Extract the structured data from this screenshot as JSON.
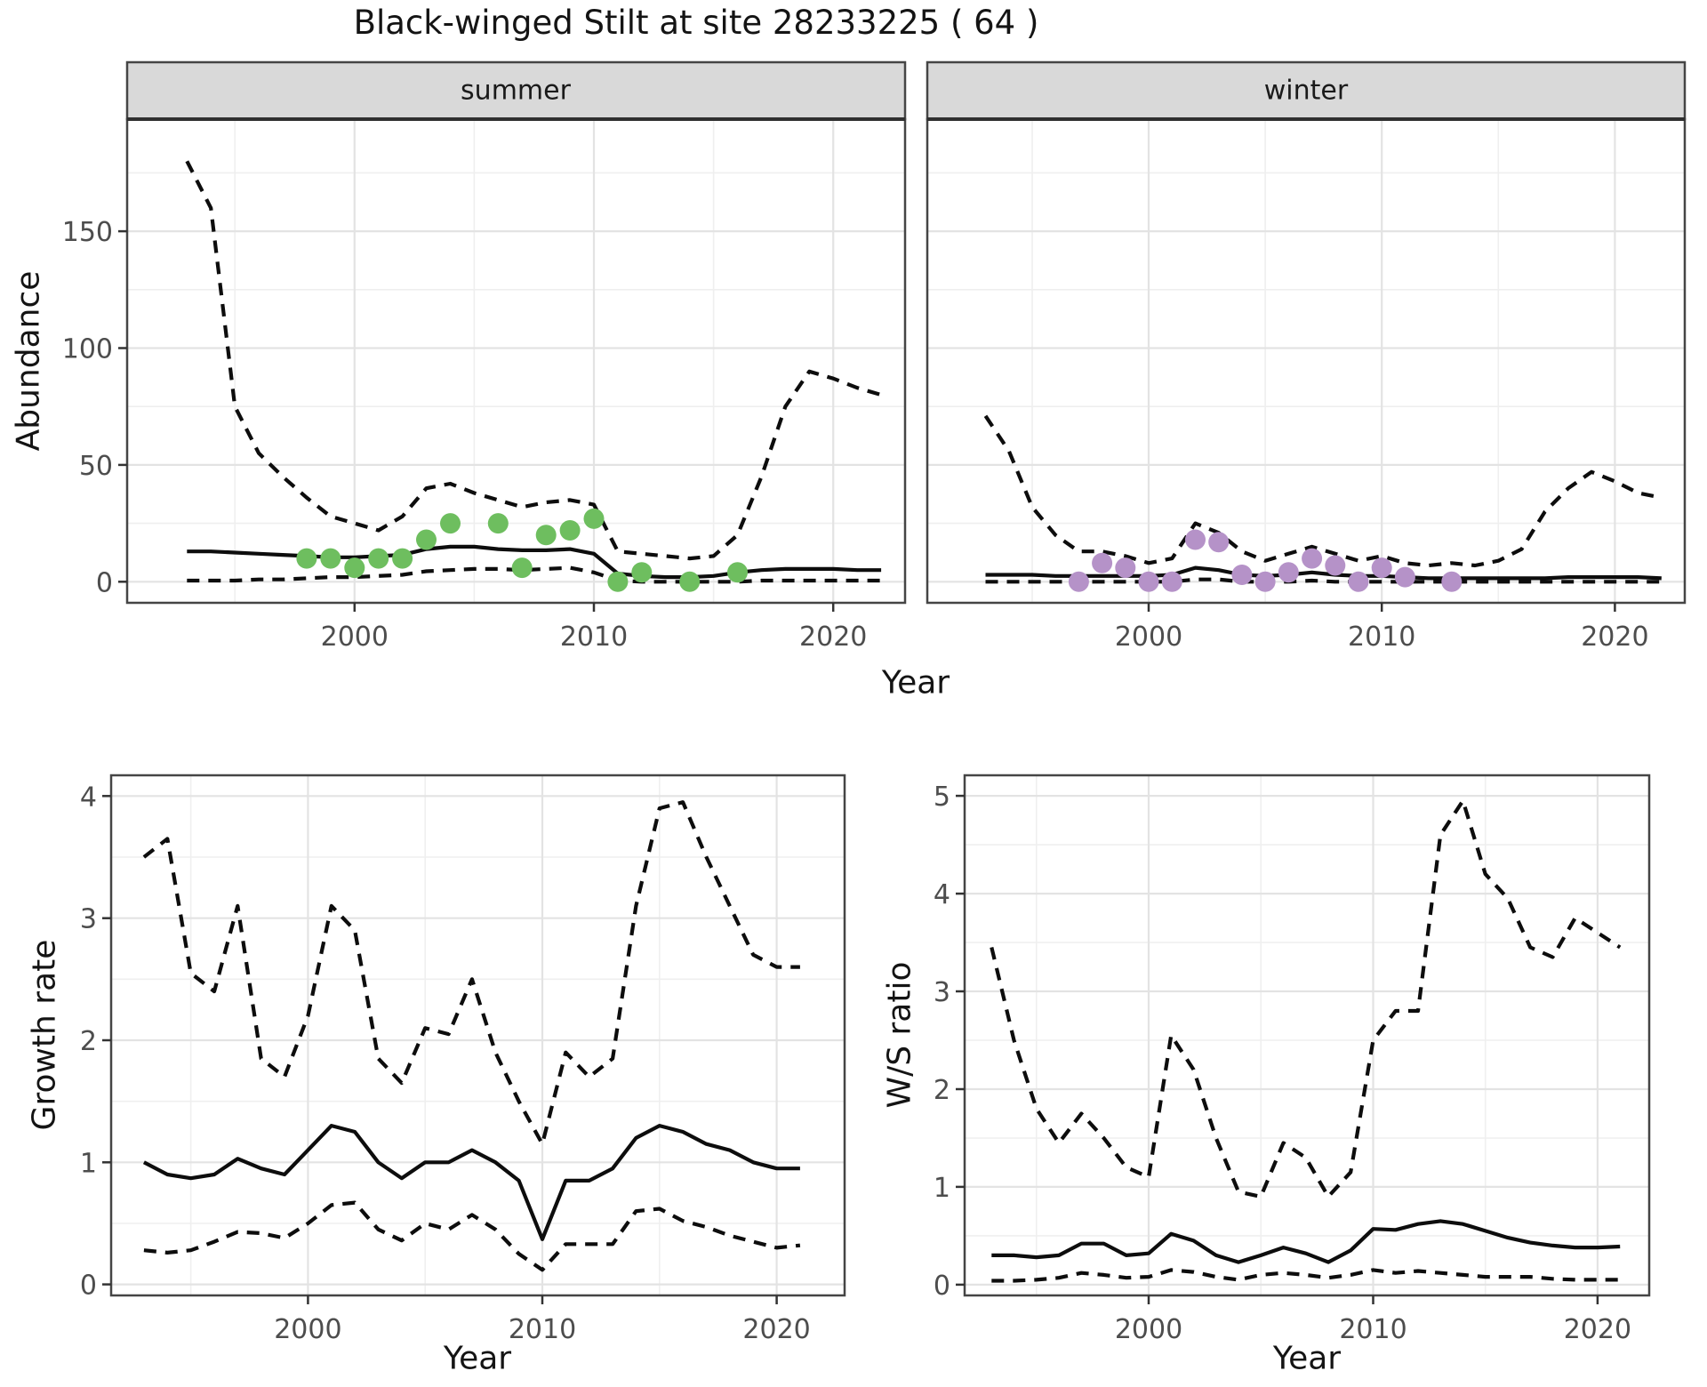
{
  "title": "Black-winged Stilt at site 28233225 ( 64 )",
  "labels": {
    "facet_summer": "summer",
    "facet_winter": "winter",
    "abundance_axis": "Abundance",
    "year_axis_top": "Year",
    "growth_axis": "Growth rate",
    "year_axis_growth": "Year",
    "ws_axis": "W/S ratio",
    "year_axis_ws": "Year"
  },
  "colors": {
    "summer_dot": "#6EBE5F",
    "winter_dot": "#B592C8",
    "line": "#0d0d0d",
    "strip_bg": "#D9D9D9",
    "panel_border": "#454545",
    "grid_major": "#e3e3e3",
    "grid_minor": "#efefef",
    "tick_text": "#4d4d4d",
    "panel_bg": "#ffffff"
  },
  "chart_data": [
    {
      "id": "abundance",
      "type": "line",
      "title": "Black-winged Stilt at site 28233225 ( 64 )",
      "ylabel": "Abundance",
      "xlabel": "Year",
      "legend": "none",
      "grid": "on",
      "xlim": [
        1990.5,
        2023.0
      ],
      "ylim": [
        -9,
        198
      ],
      "xticks": [
        2000,
        2010,
        2020
      ],
      "xminor": [
        1995,
        2005,
        2015
      ],
      "yticks": [
        0,
        50,
        100,
        150
      ],
      "yminor": [
        25,
        75,
        125,
        175
      ],
      "facets": [
        {
          "label": "summer",
          "dot_color": "#6EBE5F",
          "years": [
            1993,
            1994,
            1995,
            1996,
            1997,
            1998,
            1999,
            2000,
            2001,
            2002,
            2003,
            2004,
            2005,
            2006,
            2007,
            2008,
            2009,
            2010,
            2011,
            2012,
            2013,
            2014,
            2015,
            2016,
            2017,
            2018,
            2019,
            2020,
            2021,
            2022
          ],
          "upper": [
            180,
            160,
            75,
            55,
            45,
            36,
            28,
            25,
            22,
            28,
            40,
            42,
            38,
            35,
            32,
            34,
            35,
            33,
            13,
            12,
            11,
            10,
            11,
            20,
            45,
            75,
            90,
            87,
            83,
            80
          ],
          "mean": [
            13,
            13,
            12.5,
            12,
            11.5,
            11,
            10.5,
            10.5,
            11,
            11.5,
            14,
            15,
            15,
            14,
            13.5,
            13.5,
            14,
            12,
            3.5,
            2.5,
            2,
            2,
            2.5,
            4,
            5,
            5.5,
            5.5,
            5.5,
            5,
            5
          ],
          "lower": [
            0.5,
            0.5,
            0.5,
            1,
            1,
            1.5,
            2,
            2,
            2.5,
            3,
            4.5,
            5,
            5.5,
            5.5,
            5,
            5.5,
            6,
            4,
            0.5,
            0,
            0,
            0,
            0,
            0,
            0.5,
            0.5,
            0.5,
            0.5,
            0.5,
            0.5
          ],
          "obs_years": [
            1998,
            1999,
            2000,
            2001,
            2002,
            2003,
            2004,
            2006,
            2007,
            2008,
            2009,
            2010,
            2011,
            2012,
            2014,
            2016
          ],
          "obs_values": [
            10,
            10,
            6,
            10,
            10,
            18,
            25,
            25,
            6,
            20,
            22,
            27,
            0,
            4,
            0,
            4
          ]
        },
        {
          "label": "winter",
          "dot_color": "#B592C8",
          "years": [
            1993,
            1994,
            1995,
            1996,
            1997,
            1998,
            1999,
            2000,
            2001,
            2002,
            2003,
            2004,
            2005,
            2006,
            2007,
            2008,
            2009,
            2010,
            2011,
            2012,
            2013,
            2014,
            2015,
            2016,
            2017,
            2018,
            2019,
            2020,
            2021,
            2022
          ],
          "upper": [
            71,
            56,
            32,
            20,
            13,
            13,
            11,
            8,
            10,
            25,
            21,
            13,
            9,
            12,
            15,
            12,
            9,
            11,
            8,
            7,
            8,
            7,
            9,
            14,
            30,
            40,
            47,
            43,
            38,
            36
          ],
          "mean": [
            3,
            3,
            3,
            2.5,
            2.5,
            2.5,
            2.5,
            2.5,
            3,
            6,
            5,
            3,
            2.5,
            3,
            4,
            3,
            2.5,
            2.5,
            2,
            1.5,
            1.5,
            1.5,
            1.5,
            1.5,
            1.5,
            2,
            2,
            2,
            2,
            1.5
          ],
          "lower": [
            0,
            0,
            0,
            0,
            0,
            0,
            0,
            0,
            0,
            1,
            1,
            0,
            0,
            0,
            0.5,
            0,
            0,
            0,
            0,
            0,
            0,
            0,
            0,
            0,
            0,
            0,
            0,
            0,
            0,
            0
          ],
          "obs_years": [
            1997,
            1998,
            1999,
            2000,
            2001,
            2002,
            2003,
            2004,
            2005,
            2006,
            2007,
            2008,
            2009,
            2010,
            2011,
            2013
          ],
          "obs_values": [
            0,
            8,
            6,
            0,
            0,
            18,
            17,
            3,
            0,
            4,
            10,
            7,
            0,
            6,
            2,
            0
          ]
        }
      ]
    },
    {
      "id": "growth_rate",
      "type": "line",
      "ylabel": "Growth rate",
      "xlabel": "Year",
      "legend": "none",
      "grid": "on",
      "xlim": [
        1991.6,
        2022.9
      ],
      "ylim": [
        -0.09,
        4.17
      ],
      "xticks": [
        2000,
        2010,
        2020
      ],
      "xminor": [
        1995,
        2005,
        2015
      ],
      "yticks": [
        0,
        1,
        2,
        3,
        4
      ],
      "yminor": [
        0.5,
        1.5,
        2.5,
        3.5
      ],
      "years": [
        1993,
        1994,
        1995,
        1996,
        1997,
        1998,
        1999,
        2000,
        2001,
        2002,
        2003,
        2004,
        2005,
        2006,
        2007,
        2008,
        2009,
        2010,
        2011,
        2012,
        2013,
        2014,
        2015,
        2016,
        2017,
        2018,
        2019,
        2020,
        2021
      ],
      "upper": [
        3.5,
        3.65,
        2.55,
        2.4,
        3.1,
        1.85,
        1.7,
        2.2,
        3.1,
        2.9,
        1.85,
        1.65,
        2.1,
        2.05,
        2.5,
        1.9,
        1.5,
        1.15,
        1.9,
        1.7,
        1.85,
        3.1,
        3.9,
        3.95,
        3.5,
        3.1,
        2.7,
        2.6,
        2.6
      ],
      "mean": [
        1.0,
        0.9,
        0.87,
        0.9,
        1.03,
        0.95,
        0.9,
        1.1,
        1.3,
        1.25,
        1.0,
        0.87,
        1.0,
        1.0,
        1.1,
        1.0,
        0.85,
        0.37,
        0.85,
        0.85,
        0.95,
        1.2,
        1.3,
        1.25,
        1.15,
        1.1,
        1.0,
        0.95,
        0.95
      ],
      "lower": [
        0.28,
        0.26,
        0.28,
        0.35,
        0.43,
        0.42,
        0.38,
        0.5,
        0.65,
        0.67,
        0.45,
        0.36,
        0.5,
        0.45,
        0.57,
        0.45,
        0.25,
        0.12,
        0.33,
        0.33,
        0.33,
        0.6,
        0.62,
        0.52,
        0.47,
        0.4,
        0.35,
        0.3,
        0.32
      ]
    },
    {
      "id": "ws_ratio",
      "type": "line",
      "ylabel": "W/S ratio",
      "xlabel": "Year",
      "legend": "none",
      "grid": "on",
      "xlim": [
        1991.8,
        2022.3
      ],
      "ylim": [
        -0.11,
        5.21
      ],
      "xticks": [
        2000,
        2010,
        2020
      ],
      "xminor": [
        1995,
        2005,
        2015
      ],
      "yticks": [
        0,
        1,
        2,
        3,
        4,
        5
      ],
      "yminor": [
        0.5,
        1.5,
        2.5,
        3.5,
        4.5
      ],
      "years": [
        1993,
        1994,
        1995,
        1996,
        1997,
        1998,
        1999,
        2000,
        2001,
        2002,
        2003,
        2004,
        2005,
        2006,
        2007,
        2008,
        2009,
        2010,
        2011,
        2012,
        2013,
        2014,
        2015,
        2016,
        2017,
        2018,
        2019,
        2020,
        2021
      ],
      "upper": [
        3.45,
        2.5,
        1.8,
        1.45,
        1.75,
        1.5,
        1.2,
        1.1,
        2.55,
        2.2,
        1.5,
        0.95,
        0.9,
        1.45,
        1.3,
        0.9,
        1.15,
        2.5,
        2.8,
        2.8,
        4.6,
        4.95,
        4.2,
        3.95,
        3.45,
        3.35,
        3.75,
        3.6,
        3.45
      ],
      "mean": [
        0.3,
        0.3,
        0.28,
        0.3,
        0.42,
        0.42,
        0.3,
        0.32,
        0.52,
        0.45,
        0.3,
        0.23,
        0.3,
        0.38,
        0.32,
        0.23,
        0.35,
        0.57,
        0.56,
        0.62,
        0.65,
        0.62,
        0.55,
        0.48,
        0.43,
        0.4,
        0.38,
        0.38,
        0.39
      ],
      "lower": [
        0.04,
        0.04,
        0.05,
        0.07,
        0.12,
        0.1,
        0.07,
        0.08,
        0.15,
        0.13,
        0.08,
        0.05,
        0.1,
        0.12,
        0.1,
        0.07,
        0.1,
        0.15,
        0.12,
        0.14,
        0.12,
        0.1,
        0.08,
        0.08,
        0.08,
        0.06,
        0.05,
        0.05,
        0.05
      ]
    }
  ]
}
